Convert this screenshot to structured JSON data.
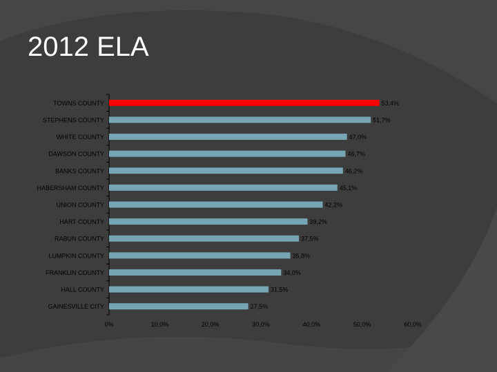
{
  "slide": {
    "title": "2012 ELA"
  },
  "colors": {
    "background": "#3d3d3d",
    "bar": "#76a5b4",
    "highlight_bar": "#ff0000",
    "text": "#000000"
  },
  "chart_data": {
    "type": "bar",
    "orientation": "horizontal",
    "title": "",
    "xlabel": "",
    "ylabel": "",
    "xlim": [
      0,
      60
    ],
    "x_ticks": [
      "0%",
      "10,0%",
      "20,0%",
      "30,0%",
      "40,0%",
      "50,0%",
      "60,0%"
    ],
    "grid": false,
    "categories": [
      "TOWNS COUNTY",
      "STEPHENS COUNTY",
      "WHITE COUNTY",
      "DAWSON COUNTY",
      "BANKS COUNTY",
      "HABERSHAM COUNTY",
      "UNION COUNTY",
      "HART COUNTY",
      "RABUN COUNTY",
      "LUMPKIN COUNTY",
      "FRANKLIN COUNTY",
      "HALL COUNTY",
      "GAINESVILLE CITY"
    ],
    "values": [
      53.4,
      51.7,
      47.0,
      46.7,
      46.2,
      45.1,
      42.2,
      39.2,
      37.5,
      35.8,
      34.0,
      31.5,
      27.5
    ],
    "value_labels": [
      "53,4%",
      "51,7%",
      "47,0%",
      "46,7%",
      "46,2%",
      "45,1%",
      "42,2%",
      "39,2%",
      "37,5%",
      "35,8%",
      "34,0%",
      "31,5%",
      "27,5%"
    ],
    "highlight_index": 0
  }
}
